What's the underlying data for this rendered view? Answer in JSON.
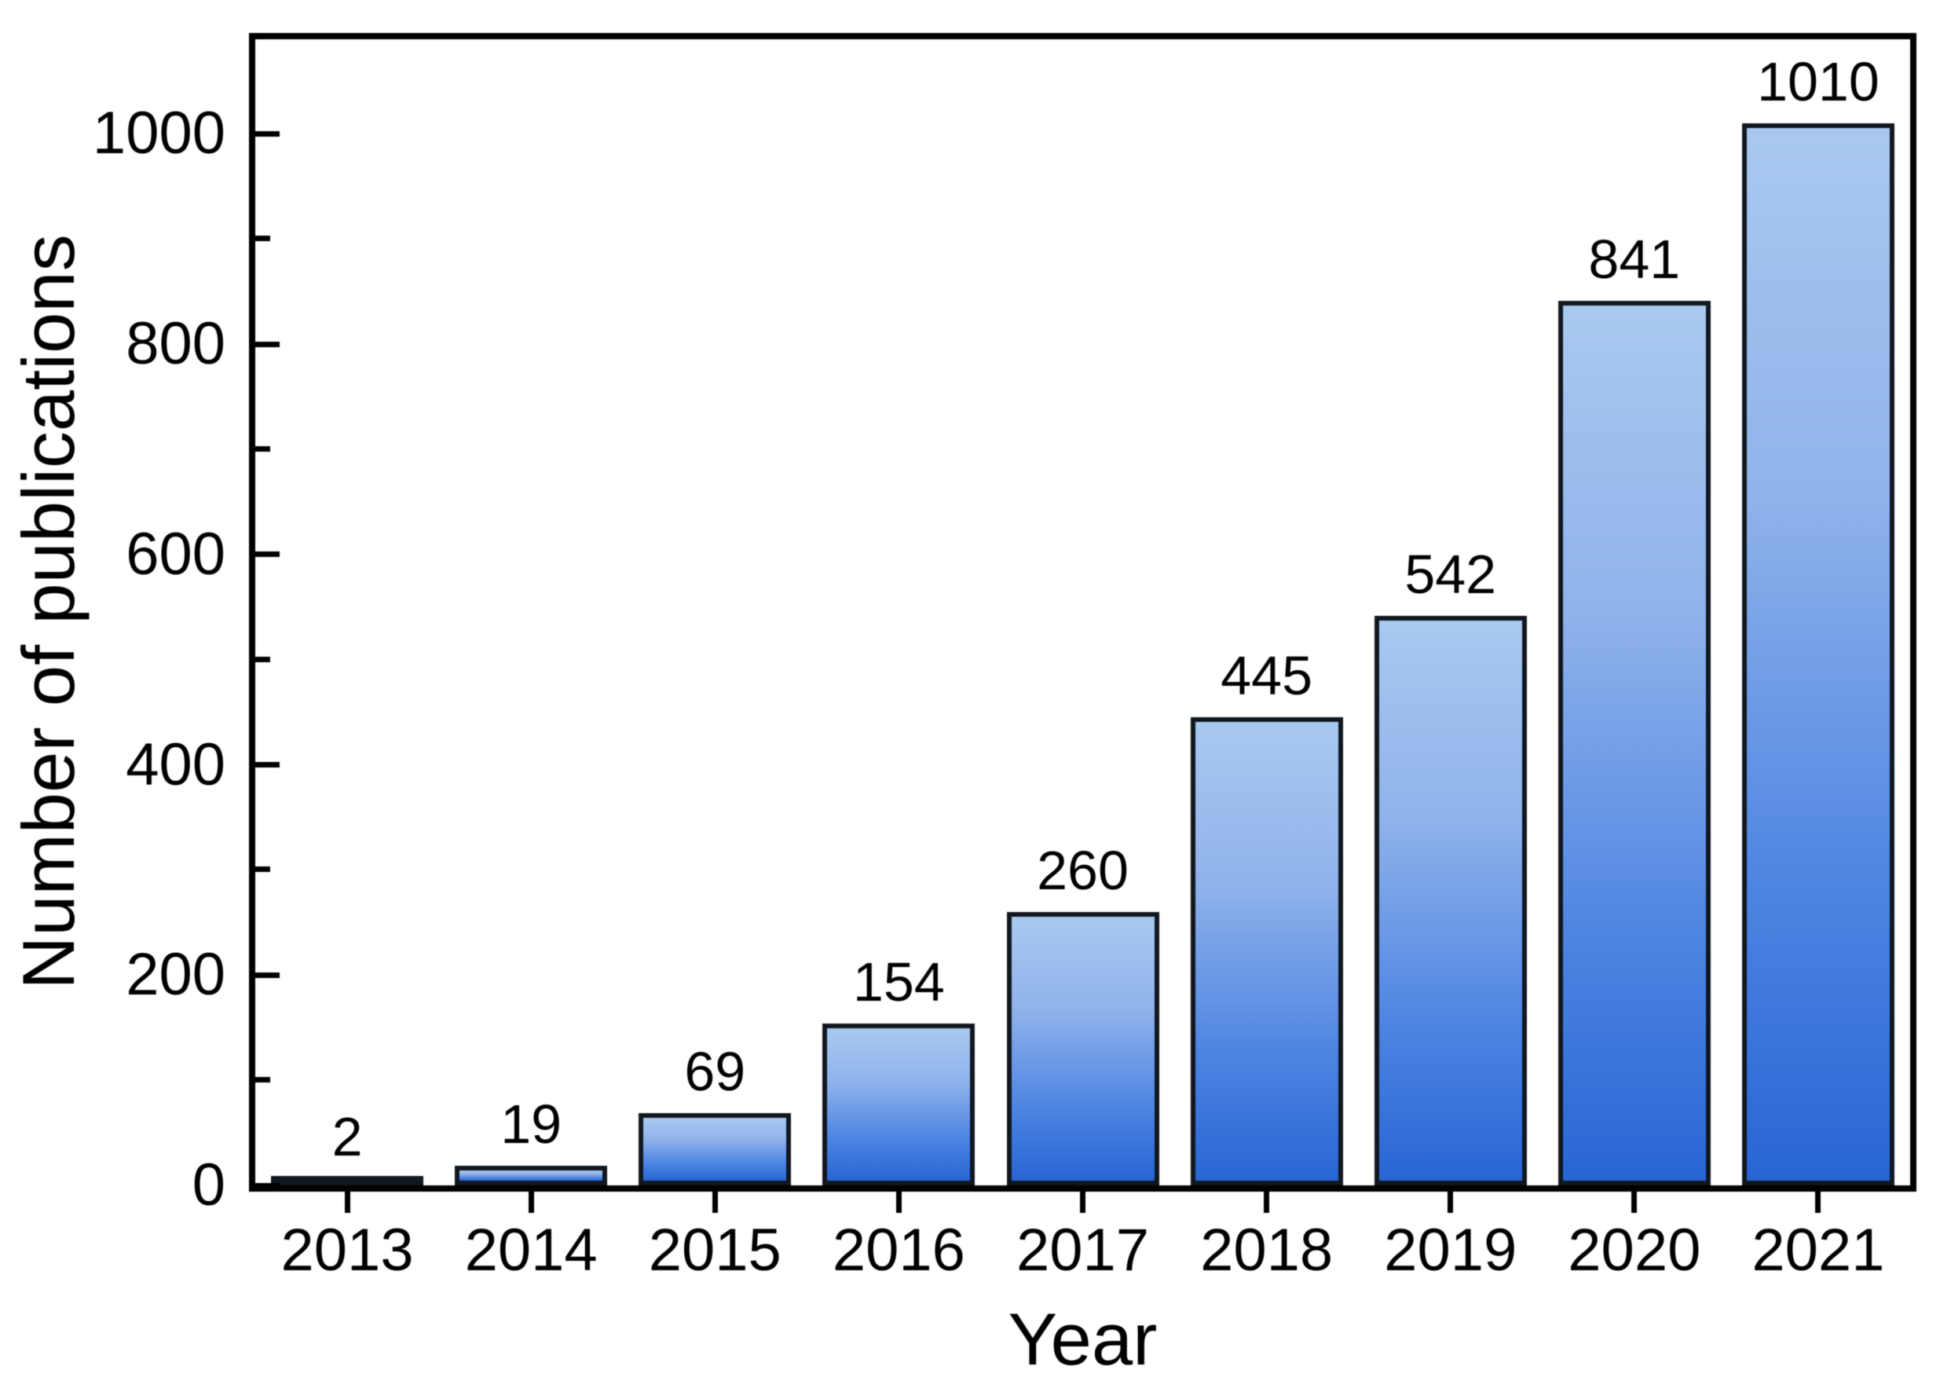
{
  "chart_data": {
    "type": "bar",
    "xlabel": "Year",
    "ylabel": "Number of publications",
    "categories": [
      "2013",
      "2014",
      "2015",
      "2016",
      "2017",
      "2018",
      "2019",
      "2020",
      "2021"
    ],
    "values": [
      2,
      19,
      69,
      154,
      260,
      445,
      542,
      841,
      1010
    ],
    "bar_labels": [
      "2",
      "19",
      "69",
      "154",
      "260",
      "445",
      "542",
      "841",
      "1010"
    ],
    "y_axis": {
      "tick_values_major": [
        0,
        200,
        400,
        600,
        800,
        1000
      ],
      "tick_labels_major": [
        "0",
        "200",
        "400",
        "600",
        "800",
        "1000"
      ],
      "tick_values_minor": [
        100,
        300,
        500,
        700,
        900
      ],
      "range": [
        0,
        1090
      ]
    },
    "grid": false,
    "legend": "none",
    "bar_label_position": "above-bar",
    "colors": {
      "bar_gradient_top": "#a9c9f0",
      "bar_gradient_upper_mid": "#90b3eb",
      "bar_gradient_lower_mid": "#4e85e2",
      "bar_gradient_bottom": "#2866d4",
      "bar_border": "#10171f",
      "axis": "#000000",
      "text": "#000000",
      "background": "#ffffff"
    }
  }
}
